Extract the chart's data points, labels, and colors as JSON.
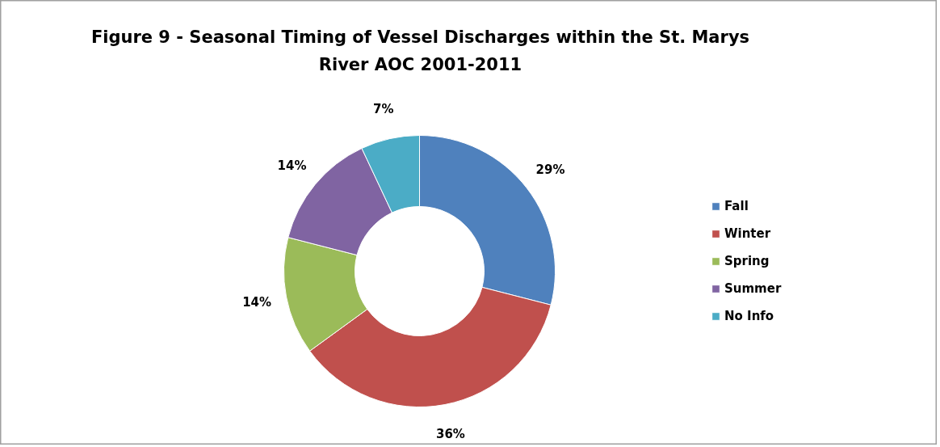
{
  "chart_data": {
    "type": "donut",
    "title": "Figure 9 - Seasonal Timing of Vessel Discharges within the St. Marys River AOC 2001-2011",
    "categories": [
      "Fall",
      "Winter",
      "Spring",
      "Summer",
      "No Info"
    ],
    "values": [
      29,
      36,
      14,
      14,
      7
    ],
    "colors": [
      "#4f81bd",
      "#c0504d",
      "#9bbb59",
      "#8064a2",
      "#4bacc6"
    ],
    "value_labels": [
      "29%",
      "36%",
      "14%",
      "14%",
      "7%"
    ],
    "legend": "right"
  }
}
